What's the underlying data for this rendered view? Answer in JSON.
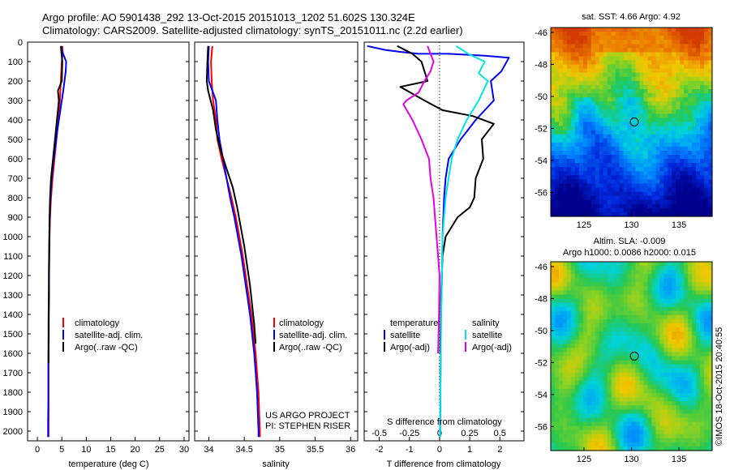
{
  "title": {
    "line1": "Argo profile: AO 5901438_292 13-Oct-2015 20151013_1202 51.602S 130.324E",
    "line2": "Climatology: CARS2009. Satellite-adjusted climatology: synTS_20151011.nc (2.2d earlier)"
  },
  "colors": {
    "climatology": "#ff0000",
    "satellite": "#0000ff",
    "argo": "#000000",
    "sat_salinity": "#00e5e5",
    "argo_salinity": "#e600e6"
  },
  "chart_data": [
    {
      "type": "line",
      "name": "temperature",
      "xlabel": "temperature (deg C)",
      "ylabel": "",
      "xlim": [
        -2,
        31
      ],
      "ylim": [
        2050,
        0
      ],
      "xticks": [
        "0",
        "5",
        "10",
        "15",
        "20",
        "25",
        "30"
      ],
      "yticks": [
        "0",
        "100",
        "200",
        "300",
        "400",
        "500",
        "600",
        "700",
        "800",
        "900",
        "1000",
        "1100",
        "1200",
        "1300",
        "1400",
        "1500",
        "1600",
        "1700",
        "1800",
        "1900",
        "2000"
      ],
      "legend": [
        "climatology",
        "satellite-adj. clim.",
        "Argo(..raw -QC)"
      ],
      "legend_position": "lower-center",
      "series": [
        {
          "name": "climatology",
          "color": "#ff0000",
          "x": [
            5.1,
            5.2,
            5.0,
            4.8,
            4.6,
            4.3,
            3.9,
            3.5,
            3.1,
            2.8,
            2.6,
            2.5,
            2.45,
            2.4,
            2.4,
            2.35,
            2.35,
            2.3,
            2.3,
            2.3,
            2.3,
            2.3,
            2.3
          ],
          "y": [
            20,
            50,
            100,
            200,
            300,
            400,
            500,
            600,
            700,
            800,
            900,
            1000,
            1100,
            1200,
            1300,
            1400,
            1500,
            1600,
            1700,
            1800,
            1900,
            2000,
            2030
          ]
        },
        {
          "name": "satellite-adj. clim.",
          "color": "#0000ff",
          "x": [
            4.9,
            5.1,
            5.9,
            5.8,
            5.3,
            4.7,
            4.1,
            3.6,
            3.1,
            2.8,
            2.6,
            2.5,
            2.45,
            2.4,
            2.4,
            2.35,
            2.3,
            2.3,
            2.25,
            2.25,
            2.25,
            2.2,
            2.2
          ],
          "y": [
            20,
            50,
            100,
            150,
            250,
            350,
            450,
            550,
            650,
            750,
            850,
            950,
            1050,
            1150,
            1250,
            1350,
            1450,
            1550,
            1650,
            1750,
            1850,
            1950,
            2030
          ]
        },
        {
          "name": "Argo(..raw -QC)",
          "color": "#000000",
          "x": [
            4.8,
            4.9,
            5.1,
            5.0,
            4.2,
            4.4,
            4.0,
            3.6,
            3.2,
            2.8,
            2.6,
            2.5,
            2.45,
            2.4,
            2.35,
            2.35,
            2.3,
            2.3,
            2.3,
            2.3
          ],
          "y": [
            20,
            50,
            100,
            200,
            250,
            300,
            400,
            500,
            600,
            700,
            800,
            900,
            1000,
            1100,
            1200,
            1300,
            1400,
            1500,
            1600,
            1650
          ]
        }
      ]
    },
    {
      "type": "line",
      "name": "salinity",
      "xlabel": "salinity",
      "ylabel": "",
      "xlim": [
        33.8,
        36.1
      ],
      "ylim": [
        2050,
        0
      ],
      "xticks": [
        "34",
        "34.5",
        "35",
        "35.5",
        "36"
      ],
      "legend": [
        "climatology",
        "satellite-adj. clim.",
        "Argo(..raw -QC)"
      ],
      "legend_position": "lower-right",
      "annotations": [
        "US ARGO PROJECT",
        "PI: STEPHEN RISER"
      ],
      "series": [
        {
          "name": "climatology",
          "color": "#ff0000",
          "x": [
            34.05,
            34.03,
            34.04,
            34.06,
            34.1,
            34.12,
            34.18,
            34.25,
            34.32,
            34.38,
            34.43,
            34.48,
            34.52,
            34.56,
            34.6,
            34.63,
            34.66,
            34.68,
            34.7,
            34.71,
            34.72,
            34.72
          ],
          "y": [
            20,
            100,
            200,
            300,
            400,
            500,
            600,
            700,
            800,
            900,
            1000,
            1100,
            1200,
            1300,
            1400,
            1500,
            1600,
            1700,
            1800,
            1900,
            2000,
            2030
          ]
        },
        {
          "name": "satellite-adj. clim.",
          "color": "#0000ff",
          "x": [
            34.0,
            33.99,
            34.0,
            34.1,
            34.12,
            34.15,
            34.2,
            34.25,
            34.3,
            34.36,
            34.41,
            34.46,
            34.5,
            34.54,
            34.58,
            34.61,
            34.64,
            34.66,
            34.68,
            34.69,
            34.7,
            34.7
          ],
          "y": [
            20,
            100,
            200,
            300,
            400,
            500,
            600,
            700,
            800,
            900,
            1000,
            1100,
            1200,
            1300,
            1400,
            1500,
            1600,
            1700,
            1800,
            1900,
            2000,
            2030
          ]
        },
        {
          "name": "Argo(..raw -QC)",
          "color": "#000000",
          "x": [
            33.99,
            33.98,
            33.97,
            33.99,
            34.06,
            34.1,
            34.16,
            34.25,
            34.34,
            34.4,
            34.45,
            34.5,
            34.54,
            34.58,
            34.61,
            34.64,
            34.66
          ],
          "y": [
            20,
            100,
            200,
            250,
            350,
            450,
            550,
            650,
            750,
            850,
            950,
            1050,
            1150,
            1250,
            1350,
            1450,
            1550
          ]
        }
      ]
    },
    {
      "type": "line",
      "name": "difference",
      "xlabel": "T difference from climatology",
      "xlabel_top": "S difference from climatology",
      "xlim": [
        -2.5,
        2.8
      ],
      "ylim": [
        2050,
        0
      ],
      "xticks": [
        "-2",
        "-1",
        "0",
        "1",
        "2"
      ],
      "xticks_s": [
        "-0.5",
        "-0.25",
        "0",
        "0.25",
        "0.5"
      ],
      "legend_temperature": {
        "heading": "temperature",
        "items": [
          "satellite",
          "Argo(-adj)"
        ]
      },
      "legend_salinity": {
        "heading": "salinity",
        "items": [
          "satellite",
          "Argo(-adj)"
        ]
      },
      "series": [
        {
          "name": "T satellite",
          "color": "#0000ff",
          "x": [
            -2.4,
            -1.8,
            -1.3,
            -0.7,
            0.3,
            1.5,
            2.3,
            2.05,
            1.7,
            1.8,
            1.2,
            0.7,
            0.3,
            0.2,
            0.15,
            0.1,
            0.08,
            0.05,
            0.04,
            0.03,
            0.02,
            0.02
          ],
          "y": [
            20,
            40,
            50,
            60,
            60,
            70,
            80,
            150,
            200,
            300,
            400,
            500,
            600,
            700,
            800,
            1000,
            1200,
            1400,
            1600,
            1800,
            2000,
            2030
          ]
        },
        {
          "name": "T Argo(-adj)",
          "color": "#000000",
          "x": [
            -1.4,
            -0.9,
            -0.6,
            -0.4,
            -1.3,
            -0.5,
            0.1,
            1.1,
            1.8,
            1.4,
            1.45,
            1.2,
            1.15,
            1.0,
            0.6,
            0.2,
            0.1,
            0.05,
            0.02
          ],
          "y": [
            20,
            60,
            100,
            200,
            230,
            300,
            350,
            380,
            420,
            500,
            600,
            700,
            800,
            850,
            900,
            1000,
            1100,
            1300,
            1600
          ]
        },
        {
          "name": "S satellite",
          "color": "#00e5e5",
          "x": [
            0.55,
            0.95,
            1.5,
            1.3,
            1.6,
            1.3,
            0.9,
            0.6,
            0.4,
            0.2,
            0.1,
            0.08,
            0.05,
            0.04,
            0.03,
            0.02,
            0.02,
            0.02
          ],
          "y": [
            20,
            60,
            100,
            160,
            200,
            300,
            400,
            500,
            600,
            800,
            1000,
            1200,
            1400,
            1600,
            1800,
            1900,
            2000,
            2030
          ]
        },
        {
          "name": "S Argo(-adj)",
          "color": "#e600e6",
          "x": [
            -0.4,
            -0.2,
            -0.3,
            -0.5,
            -0.7,
            -1.1,
            -1.2,
            -0.9,
            -0.6,
            -0.35,
            -0.3,
            -0.2,
            -0.15,
            -0.1,
            -0.05,
            0.0,
            -0.02,
            -0.05
          ],
          "y": [
            20,
            100,
            150,
            200,
            260,
            300,
            320,
            400,
            500,
            600,
            700,
            800,
            900,
            1000,
            1100,
            1200,
            1400,
            1600
          ]
        }
      ]
    },
    {
      "type": "heatmap",
      "name": "sst-map",
      "title": "sat. SST: 4.66 Argo: 4.92",
      "xlim": [
        121.5,
        138.5
      ],
      "ylim": [
        -57.5,
        -45.7
      ],
      "xticks": [
        "125",
        "130",
        "135"
      ],
      "yticks": [
        "-46",
        "-48",
        "-50",
        "-52",
        "-54",
        "-56"
      ],
      "marker": {
        "lon": 130.3,
        "lat": -51.6
      }
    },
    {
      "type": "heatmap",
      "name": "sla-map",
      "title": "Altim. SLA: -0.009",
      "subtitle": "Argo h1000: 0.0086 h2000: 0.015",
      "xlim": [
        121.5,
        138.5
      ],
      "ylim": [
        -57.5,
        -45.7
      ],
      "xticks": [
        "125",
        "130",
        "135"
      ],
      "yticks": [
        "-46",
        "-48",
        "-50",
        "-52",
        "-54",
        "-56"
      ],
      "marker": {
        "lon": 130.3,
        "lat": -51.6
      },
      "side_label": "©IMOS 18-Oct-2015 20:40:55"
    }
  ]
}
